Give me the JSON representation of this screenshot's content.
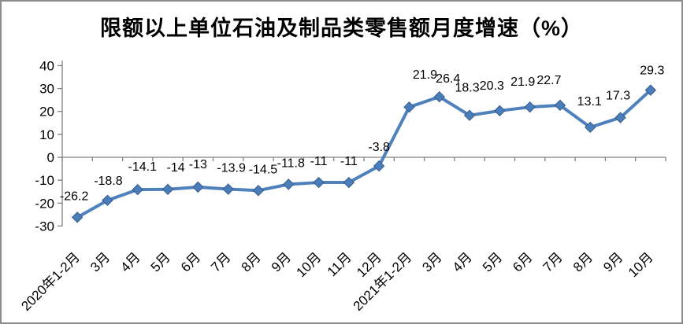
{
  "window": {
    "background": "#ffffff",
    "border_color": "#8c8c8c"
  },
  "chart_data": {
    "type": "line",
    "title": "限额以上单位石油及制品类零售额月度增速（%）",
    "categories": [
      "2020年1-2月",
      "3月",
      "4月",
      "5月",
      "6月",
      "7月",
      "8月",
      "9月",
      "10月",
      "11月",
      "12月",
      "2021年1-2月",
      "3月",
      "4月",
      "5月",
      "6月",
      "7月",
      "8月",
      "9月",
      "10月"
    ],
    "values": [
      -26.2,
      -18.8,
      -14.1,
      -14,
      -13,
      -13.9,
      -14.5,
      -11.8,
      -11,
      -11,
      -3.8,
      21.9,
      26.4,
      18.3,
      20.3,
      21.9,
      22.7,
      13.1,
      17.3,
      29.3
    ],
    "value_labels": [
      "-26.2",
      "-18.8",
      "-14.1",
      "-14",
      "-13",
      "-13.9",
      "-14.5",
      "-11.8",
      "-11",
      "-11",
      "-3.8",
      "21.9",
      "26.4",
      "18.3",
      "20.3",
      "21.9",
      "22.7",
      "13.1",
      "17.3",
      "29.3"
    ],
    "xlabel": "",
    "ylabel": "",
    "ylim": [
      -30,
      40
    ],
    "yticks": [
      40,
      30,
      20,
      10,
      0,
      -10,
      -20,
      -30
    ],
    "grid": false,
    "legend": "none",
    "data_labels": true,
    "line_color": "#4F81BD",
    "marker": "diamond",
    "marker_fill": "#4A7EBB",
    "marker_stroke": "#385D8A",
    "axis_color": "#808080",
    "text_color": "#000000"
  }
}
